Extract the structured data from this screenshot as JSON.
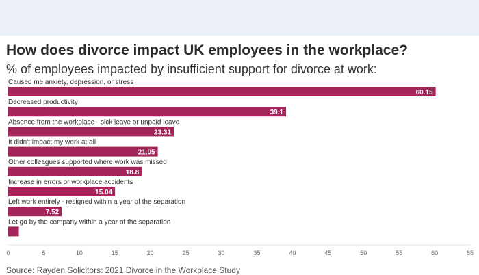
{
  "header": {
    "title": "How does divorce impact UK employees in the workplace?",
    "subtitle": "% of employees impacted by insufficient support for divorce at work:"
  },
  "footer": {
    "source": "Source: Rayden Solicitors: 2021 Divorce in the Workplace Study"
  },
  "colors": {
    "bar": "#a3255a",
    "banner": "#ecf0fa",
    "axis_text": "#666666",
    "grid": "#e5e5e5"
  },
  "chart_data": {
    "type": "bar",
    "orientation": "horizontal",
    "categories": [
      "Caused me anxiety, depression, or stress",
      "Decreased productivity",
      "Absence from the workplace - sick leave or unpaid leave",
      "It didn't impact my work at all",
      "Other colleagues supported where work was missed",
      "Increase in errors or workplace accidents",
      "Left work entirely - resigned within a year of the separation",
      "Let go by the company within a year of the separation"
    ],
    "values": [
      60.15,
      39.1,
      23.31,
      21.05,
      18.8,
      15.04,
      7.52,
      1.5
    ],
    "data_labels": [
      "60.15",
      "39.1",
      "23.31",
      "21.05",
      "18.8",
      "15.04",
      "7.52",
      ""
    ],
    "xlim": [
      0,
      65
    ],
    "xticks": [
      "0",
      "5",
      "10",
      "15",
      "20",
      "25",
      "30",
      "35",
      "40",
      "45",
      "50",
      "55",
      "60",
      "65"
    ],
    "xlabel": "",
    "ylabel": ""
  }
}
